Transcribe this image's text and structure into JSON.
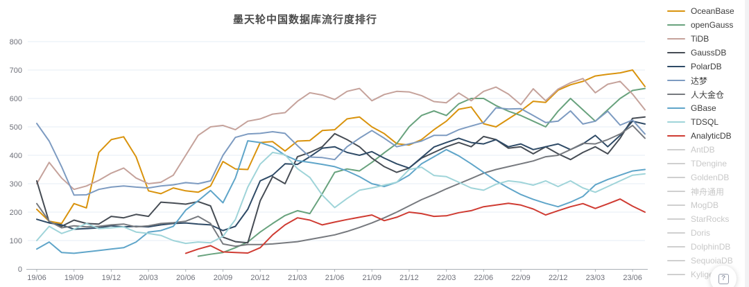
{
  "title": "墨天轮中国数据库流行度排行",
  "help_widget": {
    "glyph": "?"
  },
  "chart_data": {
    "type": "line",
    "title": "墨天轮中国数据库流行度排行",
    "xlabel": "",
    "ylabel": "",
    "ylim": [
      0,
      800
    ],
    "y_ticks": [
      0,
      100,
      200,
      300,
      400,
      500,
      600,
      700,
      800
    ],
    "grid": true,
    "legend_position": "right",
    "x_tick_labels": [
      "19/06",
      "19/09",
      "19/12",
      "20/03",
      "20/06",
      "20/09",
      "20/12",
      "21/03",
      "21/06",
      "21/09",
      "21/12",
      "22/03",
      "22/06",
      "22/09",
      "22/12",
      "23/03",
      "23/06"
    ],
    "months": [
      "19/06",
      "19/07",
      "19/08",
      "19/09",
      "19/10",
      "19/11",
      "19/12",
      "20/01",
      "20/02",
      "20/03",
      "20/04",
      "20/05",
      "20/06",
      "20/07",
      "20/08",
      "20/09",
      "20/10",
      "20/11",
      "20/12",
      "21/01",
      "21/02",
      "21/03",
      "21/04",
      "21/05",
      "21/06",
      "21/07",
      "21/08",
      "21/09",
      "21/10",
      "21/11",
      "21/12",
      "22/01",
      "22/02",
      "22/03",
      "22/04",
      "22/05",
      "22/06",
      "22/07",
      "22/08",
      "22/09",
      "22/10",
      "22/11",
      "22/12",
      "23/01",
      "23/02",
      "23/03",
      "23/04",
      "23/05",
      "23/06",
      "23/07"
    ],
    "series": [
      {
        "name": "OceanBase",
        "color": "#d9930d",
        "values": [
          210,
          168,
          160,
          230,
          215,
          410,
          455,
          465,
          395,
          275,
          265,
          285,
          275,
          270,
          292,
          378,
          352,
          350,
          445,
          448,
          415,
          450,
          452,
          487,
          490,
          528,
          535,
          500,
          476,
          441,
          436,
          455,
          490,
          520,
          562,
          570,
          511,
          500,
          528,
          556,
          590,
          586,
          629,
          648,
          660,
          679,
          685,
          690,
          700,
          642
        ]
      },
      {
        "name": "openGauss",
        "color": "#68a27d",
        "values": [
          null,
          null,
          null,
          null,
          null,
          null,
          null,
          null,
          null,
          null,
          null,
          null,
          null,
          45,
          52,
          58,
          75,
          95,
          130,
          160,
          188,
          205,
          195,
          265,
          340,
          352,
          345,
          375,
          409,
          441,
          500,
          540,
          556,
          540,
          581,
          600,
          600,
          575,
          555,
          540,
          520,
          500,
          555,
          600,
          560,
          520,
          560,
          600,
          628,
          635
        ]
      },
      {
        "name": "TiDB",
        "color": "#c5a29b",
        "values": [
          300,
          375,
          320,
          280,
          292,
          312,
          337,
          355,
          320,
          300,
          305,
          330,
          400,
          470,
          500,
          505,
          490,
          520,
          528,
          545,
          550,
          590,
          620,
          612,
          596,
          625,
          635,
          592,
          614,
          625,
          623,
          610,
          589,
          585,
          619,
          592,
          625,
          640,
          615,
          578,
          634,
          592,
          633,
          655,
          670,
          620,
          650,
          660,
          615,
          560
        ]
      },
      {
        "name": "GaussDB",
        "color": "#464c54",
        "values": [
          310,
          165,
          150,
          172,
          160,
          158,
          185,
          180,
          192,
          185,
          235,
          232,
          228,
          237,
          222,
          112,
          96,
          92,
          240,
          325,
          300,
          395,
          410,
          430,
          476,
          455,
          430,
          390,
          360,
          340,
          355,
          390,
          410,
          430,
          445,
          430,
          466,
          455,
          425,
          430,
          405,
          430,
          405,
          385,
          410,
          430,
          405,
          460,
          530,
          535
        ]
      },
      {
        "name": "PolarDB",
        "color": "#2e4a66",
        "values": [
          175,
          162,
          155,
          140,
          142,
          145,
          152,
          148,
          150,
          148,
          155,
          160,
          162,
          158,
          155,
          135,
          150,
          210,
          310,
          330,
          370,
          368,
          395,
          425,
          430,
          410,
          400,
          413,
          390,
          370,
          355,
          392,
          429,
          445,
          460,
          445,
          440,
          455,
          430,
          440,
          420,
          430,
          440,
          420,
          440,
          470,
          430,
          470,
          520,
          510
        ]
      },
      {
        "name": "达梦",
        "color": "#7d9bc1",
        "values": [
          512,
          450,
          360,
          260,
          261,
          280,
          288,
          292,
          288,
          285,
          292,
          296,
          304,
          300,
          310,
          400,
          463,
          475,
          477,
          483,
          477,
          434,
          394,
          392,
          385,
          430,
          460,
          487,
          460,
          430,
          440,
          450,
          470,
          470,
          490,
          503,
          515,
          567,
          563,
          564,
          540,
          515,
          520,
          556,
          510,
          520,
          555,
          506,
          524,
          475
        ]
      },
      {
        "name": "人大金仓",
        "color": "#76797e",
        "values": [
          230,
          168,
          145,
          152,
          148,
          150,
          155,
          158,
          148,
          152,
          160,
          163,
          168,
          185,
          160,
          88,
          80,
          86,
          86,
          88,
          92,
          96,
          104,
          112,
          120,
          132,
          146,
          162,
          180,
          200,
          222,
          244,
          262,
          282,
          300,
          318,
          337,
          350,
          360,
          370,
          380,
          395,
          400,
          420,
          442,
          440,
          455,
          475,
          505,
          460
        ]
      },
      {
        "name": "GBase",
        "color": "#5fa5c9",
        "values": [
          70,
          95,
          58,
          55,
          60,
          65,
          70,
          75,
          95,
          130,
          135,
          150,
          207,
          240,
          276,
          233,
          320,
          451,
          445,
          430,
          400,
          381,
          375,
          368,
          360,
          345,
          325,
          300,
          290,
          305,
          330,
          370,
          395,
          420,
          398,
          370,
          340,
          310,
          285,
          262,
          245,
          231,
          219,
          235,
          255,
          296,
          315,
          330,
          345,
          350
        ]
      },
      {
        "name": "TDSQL",
        "color": "#9fd4d9",
        "values": [
          100,
          150,
          125,
          140,
          160,
          142,
          145,
          148,
          130,
          125,
          118,
          100,
          90,
          95,
          92,
          115,
          174,
          288,
          369,
          410,
          402,
          353,
          322,
          260,
          216,
          248,
          277,
          285,
          295,
          305,
          350,
          358,
          329,
          325,
          305,
          285,
          277,
          298,
          310,
          305,
          295,
          310,
          290,
          310,
          285,
          270,
          290,
          310,
          330,
          335
        ]
      },
      {
        "name": "AnalyticDB",
        "color": "#cf3b32",
        "values": [
          null,
          null,
          null,
          null,
          null,
          null,
          null,
          null,
          null,
          null,
          null,
          null,
          55,
          70,
          82,
          60,
          58,
          56,
          75,
          120,
          155,
          180,
          172,
          155,
          165,
          174,
          182,
          190,
          170,
          182,
          200,
          195,
          185,
          187,
          198,
          205,
          219,
          225,
          231,
          225,
          211,
          190,
          205,
          219,
          230,
          213,
          229,
          246,
          221,
          200
        ]
      }
    ],
    "disabled_series": [
      "AntDB",
      "TDengine",
      "GoldenDB",
      "神舟通用",
      "MogDB",
      "StarRocks",
      "Doris",
      "DolphinDB",
      "SequoiaDB",
      "Kyligence"
    ]
  }
}
